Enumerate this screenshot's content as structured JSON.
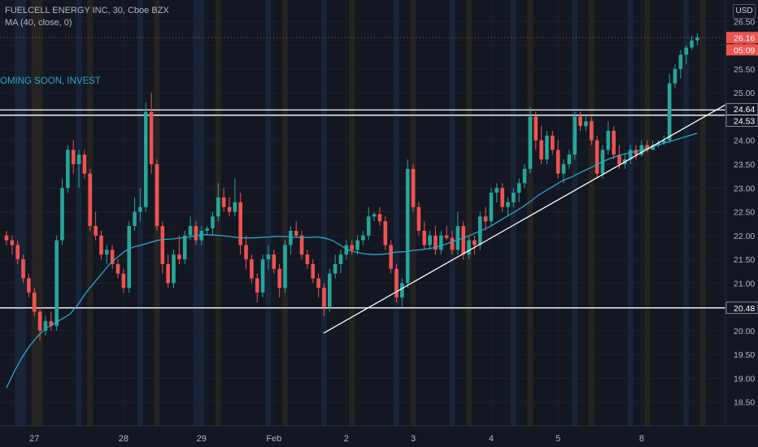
{
  "header": {
    "line1": "FUELCELL ENERGY INC, 30, Cboe BZX",
    "line2": "MA (40, close, 0)"
  },
  "annotation": "OMING SOON, INVEST",
  "currency": "USD",
  "colors": {
    "background": "#131722",
    "up": "#26a69a",
    "down": "#ef5350",
    "ma": "#2aa7c9",
    "line": "#ffffff",
    "session_blue": "#1c2a42",
    "session_orange": "#2e2a22",
    "last_price_tag": "#ef5350"
  },
  "chart_data": {
    "type": "candlestick",
    "symbol": "FUELCELL ENERGY INC",
    "interval": "30",
    "exchange": "Cboe BZX",
    "x_ticks": [
      "27",
      "28",
      "29",
      "Feb",
      "2",
      "3",
      "4",
      "5",
      "8"
    ],
    "y_ticks": [
      26.5,
      26.0,
      25.5,
      25.0,
      24.5,
      24.0,
      23.5,
      23.0,
      22.5,
      22.0,
      21.5,
      21.0,
      20.5,
      20.0,
      19.5,
      19.0,
      18.5
    ],
    "ylim": [
      18.0,
      26.95
    ],
    "y_tick_labels": [
      "26.50",
      "26.00",
      "25.50",
      "25.00",
      "24.50",
      "24.00",
      "23.50",
      "23.00",
      "22.50",
      "22.00",
      "21.50",
      "21.00",
      "20.50",
      "20.00",
      "19.50",
      "19.00",
      "18.50"
    ],
    "price_labels": [
      {
        "value": 26.16,
        "text": "26.16",
        "style": "last"
      },
      {
        "value": 26.0,
        "text": "05:09",
        "style": "countdown"
      },
      {
        "value": 24.64,
        "text": "24.64",
        "style": "level"
      },
      {
        "value": 24.53,
        "text": "24.53",
        "style": "level"
      },
      {
        "value": 20.48,
        "text": "20.48",
        "style": "level"
      }
    ],
    "horizontal_levels": [
      24.64,
      24.53,
      20.48
    ],
    "last_price": 26.16,
    "ohlc": [
      [
        22.0,
        22.1,
        21.8,
        21.9
      ],
      [
        21.9,
        22.0,
        21.6,
        21.8
      ],
      [
        21.8,
        21.9,
        21.4,
        21.5
      ],
      [
        21.5,
        21.6,
        21.0,
        21.1
      ],
      [
        21.1,
        21.2,
        20.7,
        20.8
      ],
      [
        20.8,
        20.9,
        20.3,
        20.4
      ],
      [
        20.4,
        20.5,
        19.8,
        20.0
      ],
      [
        20.0,
        20.3,
        19.9,
        20.2
      ],
      [
        20.2,
        20.4,
        20.0,
        20.1
      ],
      [
        20.1,
        22.0,
        20.0,
        21.9
      ],
      [
        21.9,
        23.2,
        21.8,
        23.0
      ],
      [
        23.0,
        23.9,
        22.9,
        23.8
      ],
      [
        23.8,
        24.0,
        23.3,
        23.5
      ],
      [
        23.5,
        23.8,
        23.0,
        23.7
      ],
      [
        23.7,
        23.8,
        23.2,
        23.3
      ],
      [
        23.3,
        23.4,
        22.1,
        22.2
      ],
      [
        22.2,
        22.5,
        21.9,
        22.0
      ],
      [
        22.0,
        22.1,
        21.5,
        21.6
      ],
      [
        21.6,
        21.8,
        21.4,
        21.7
      ],
      [
        21.7,
        21.8,
        21.3,
        21.4
      ],
      [
        21.4,
        21.5,
        21.1,
        21.2
      ],
      [
        21.2,
        21.3,
        20.8,
        20.9
      ],
      [
        20.9,
        22.3,
        20.8,
        22.2
      ],
      [
        22.2,
        22.8,
        22.1,
        22.5
      ],
      [
        22.5,
        23.0,
        22.3,
        22.6
      ],
      [
        22.6,
        24.8,
        22.5,
        24.6
      ],
      [
        24.6,
        25.0,
        23.3,
        23.5
      ],
      [
        23.5,
        23.6,
        22.1,
        22.2
      ],
      [
        22.2,
        22.3,
        21.2,
        21.4
      ],
      [
        21.4,
        21.6,
        20.9,
        21.0
      ],
      [
        21.0,
        21.7,
        20.9,
        21.6
      ],
      [
        21.6,
        22.0,
        21.4,
        21.5
      ],
      [
        21.5,
        22.1,
        21.4,
        22.0
      ],
      [
        22.0,
        22.4,
        21.9,
        22.2
      ],
      [
        22.2,
        22.3,
        21.8,
        21.9
      ],
      [
        21.9,
        22.2,
        21.8,
        22.1
      ],
      [
        22.1,
        22.2,
        22.0,
        22.15
      ],
      [
        22.15,
        22.5,
        22.0,
        22.4
      ],
      [
        22.4,
        23.1,
        22.3,
        22.8
      ],
      [
        22.8,
        23.0,
        22.5,
        22.6
      ],
      [
        22.6,
        22.8,
        22.4,
        22.5
      ],
      [
        22.5,
        23.2,
        22.4,
        22.7
      ],
      [
        22.7,
        22.9,
        21.6,
        21.8
      ],
      [
        21.8,
        22.0,
        21.3,
        21.5
      ],
      [
        21.5,
        21.6,
        21.0,
        21.1
      ],
      [
        21.1,
        21.2,
        20.6,
        20.8
      ],
      [
        20.8,
        21.6,
        20.7,
        21.5
      ],
      [
        21.5,
        21.8,
        21.3,
        21.6
      ],
      [
        21.6,
        21.7,
        21.2,
        21.3
      ],
      [
        21.3,
        21.4,
        20.7,
        20.9
      ],
      [
        20.9,
        21.9,
        20.8,
        21.8
      ],
      [
        21.8,
        22.2,
        21.6,
        22.1
      ],
      [
        22.1,
        22.3,
        21.95,
        22.0
      ],
      [
        22.0,
        22.1,
        21.5,
        21.6
      ],
      [
        21.6,
        21.7,
        21.3,
        21.4
      ],
      [
        21.4,
        21.5,
        21.0,
        21.1
      ],
      [
        21.1,
        21.2,
        20.7,
        20.9
      ],
      [
        20.9,
        21.0,
        20.3,
        20.5
      ],
      [
        20.5,
        21.3,
        20.4,
        21.2
      ],
      [
        21.2,
        21.6,
        21.1,
        21.4
      ],
      [
        21.4,
        21.7,
        21.2,
        21.6
      ],
      [
        21.6,
        21.9,
        21.5,
        21.8
      ],
      [
        21.8,
        21.9,
        21.6,
        21.7
      ],
      [
        21.7,
        22.0,
        21.6,
        21.9
      ],
      [
        21.9,
        22.1,
        21.8,
        22.0
      ],
      [
        22.0,
        22.6,
        21.9,
        22.4
      ],
      [
        22.4,
        22.5,
        22.3,
        22.45
      ],
      [
        22.45,
        22.6,
        22.2,
        22.3
      ],
      [
        22.3,
        22.4,
        21.7,
        21.8
      ],
      [
        21.8,
        21.9,
        21.2,
        21.3
      ],
      [
        21.3,
        21.4,
        20.6,
        20.7
      ],
      [
        20.7,
        21.1,
        20.5,
        21.0
      ],
      [
        21.0,
        23.6,
        20.9,
        23.4
      ],
      [
        23.4,
        23.5,
        22.5,
        22.6
      ],
      [
        22.6,
        22.7,
        22.0,
        22.1
      ],
      [
        22.1,
        22.3,
        21.7,
        21.8
      ],
      [
        21.8,
        22.1,
        21.7,
        22.0
      ],
      [
        22.0,
        22.2,
        21.6,
        21.7
      ],
      [
        21.7,
        22.1,
        21.6,
        22.0
      ],
      [
        22.0,
        22.2,
        21.9,
        21.95
      ],
      [
        21.95,
        22.1,
        21.6,
        21.7
      ],
      [
        21.7,
        22.5,
        21.6,
        22.2
      ],
      [
        22.2,
        22.3,
        21.5,
        21.6
      ],
      [
        21.6,
        22.0,
        21.5,
        21.9
      ],
      [
        21.9,
        22.0,
        21.6,
        21.8
      ],
      [
        21.8,
        22.5,
        21.7,
        22.4
      ],
      [
        22.4,
        22.6,
        22.1,
        22.3
      ],
      [
        22.3,
        23.0,
        22.2,
        22.9
      ],
      [
        22.9,
        23.1,
        22.7,
        23.0
      ],
      [
        23.0,
        23.1,
        22.5,
        22.6
      ],
      [
        22.6,
        22.8,
        22.4,
        22.7
      ],
      [
        22.7,
        23.0,
        22.6,
        22.9
      ],
      [
        22.9,
        23.2,
        22.7,
        23.1
      ],
      [
        23.1,
        23.5,
        23.0,
        23.4
      ],
      [
        23.4,
        24.7,
        23.3,
        24.5
      ],
      [
        24.5,
        24.6,
        23.8,
        24.0
      ],
      [
        24.0,
        24.3,
        23.5,
        23.6
      ],
      [
        23.6,
        24.2,
        23.5,
        24.1
      ],
      [
        24.1,
        24.2,
        23.7,
        23.8
      ],
      [
        23.8,
        24.0,
        23.2,
        23.3
      ],
      [
        23.3,
        23.6,
        23.1,
        23.5
      ],
      [
        23.5,
        23.8,
        23.4,
        23.7
      ],
      [
        23.7,
        24.6,
        23.6,
        24.5
      ],
      [
        24.5,
        24.6,
        24.2,
        24.3
      ],
      [
        24.3,
        24.5,
        24.2,
        24.4
      ],
      [
        24.4,
        24.5,
        23.9,
        24.0
      ],
      [
        24.0,
        24.1,
        23.2,
        23.3
      ],
      [
        23.3,
        23.9,
        23.2,
        23.8
      ],
      [
        23.8,
        24.4,
        23.7,
        24.2
      ],
      [
        24.2,
        24.3,
        23.6,
        23.7
      ],
      [
        23.7,
        23.9,
        23.4,
        23.5
      ],
      [
        23.5,
        23.7,
        23.4,
        23.6
      ],
      [
        23.6,
        23.9,
        23.5,
        23.8
      ],
      [
        23.8,
        23.9,
        23.6,
        23.7
      ],
      [
        23.7,
        24.0,
        23.65,
        23.9
      ],
      [
        23.9,
        24.0,
        23.75,
        23.8
      ],
      [
        23.8,
        24.0,
        23.8,
        23.9
      ],
      [
        23.9,
        24.0,
        23.85,
        23.95
      ],
      [
        23.95,
        24.1,
        23.9,
        24.0
      ],
      [
        24.0,
        25.4,
        23.95,
        25.2
      ],
      [
        25.2,
        25.6,
        25.1,
        25.5
      ],
      [
        25.5,
        25.9,
        25.3,
        25.8
      ],
      [
        25.8,
        26.0,
        25.6,
        25.95
      ],
      [
        25.95,
        26.2,
        25.9,
        26.1
      ],
      [
        26.1,
        26.25,
        26.0,
        26.16
      ]
    ],
    "ma": {
      "name": "MA (40, close, 0)",
      "values": [
        18.8,
        19.15,
        19.45,
        19.7,
        19.9,
        20.05,
        20.15,
        20.25,
        20.35,
        20.55,
        20.8,
        21.0,
        21.2,
        21.4,
        21.55,
        21.68,
        21.76,
        21.8,
        21.85,
        21.9,
        21.92,
        21.93,
        21.95,
        21.97,
        22.0,
        22.02,
        22.01,
        22.0,
        21.98,
        21.96,
        21.95,
        21.95,
        21.96,
        21.97,
        21.98,
        21.98,
        21.97,
        21.96,
        21.96,
        21.97,
        21.95,
        21.9,
        21.8,
        21.7,
        21.65,
        21.62,
        21.6,
        21.6,
        21.62,
        21.65,
        21.66,
        21.68,
        21.7,
        21.72,
        21.75,
        21.8,
        21.86,
        21.92,
        21.98,
        22.05,
        22.12,
        22.2,
        22.3,
        22.4,
        22.5,
        22.6,
        22.72,
        22.85,
        22.95,
        23.05,
        23.15,
        23.22,
        23.3,
        23.38,
        23.46,
        23.55,
        23.62,
        23.68,
        23.72,
        23.76,
        23.8,
        23.85,
        23.9,
        23.95,
        24.0,
        24.05,
        24.1,
        24.15
      ]
    },
    "trendlines": [
      {
        "from": [
          0,
          19.95
        ],
        "to": [
          121,
          24.75
        ]
      }
    ],
    "session_bands": [
      {
        "start": 2,
        "end": 4,
        "color": "session_blue"
      },
      {
        "start": 5,
        "end": 7,
        "color": "session_orange"
      },
      {
        "start": 13,
        "end": 14,
        "color": "session_blue"
      },
      {
        "start": 15,
        "end": 16,
        "color": "session_orange"
      },
      {
        "start": 24,
        "end": 25,
        "color": "session_blue"
      },
      {
        "start": 27,
        "end": 28,
        "color": "session_orange"
      },
      {
        "start": 34,
        "end": 36,
        "color": "session_blue"
      },
      {
        "start": 38,
        "end": 39,
        "color": "session_orange"
      },
      {
        "start": 47,
        "end": 48,
        "color": "session_blue"
      },
      {
        "start": 50,
        "end": 51,
        "color": "session_orange"
      },
      {
        "start": 57,
        "end": 58,
        "color": "session_blue"
      },
      {
        "start": 62,
        "end": 63,
        "color": "session_orange"
      },
      {
        "start": 70,
        "end": 71,
        "color": "session_blue"
      },
      {
        "start": 73,
        "end": 74,
        "color": "session_orange"
      },
      {
        "start": 80,
        "end": 81,
        "color": "session_blue"
      },
      {
        "start": 83,
        "end": 84,
        "color": "session_orange"
      },
      {
        "start": 91,
        "end": 92,
        "color": "session_blue"
      },
      {
        "start": 94,
        "end": 95,
        "color": "session_orange"
      },
      {
        "start": 102,
        "end": 103,
        "color": "session_blue"
      },
      {
        "start": 105,
        "end": 106,
        "color": "session_orange"
      },
      {
        "start": 112,
        "end": 113,
        "color": "session_blue"
      },
      {
        "start": 115,
        "end": 116,
        "color": "session_orange"
      },
      {
        "start": 122,
        "end": 123,
        "color": "session_blue"
      },
      {
        "start": 125,
        "end": 126,
        "color": "session_orange"
      }
    ]
  }
}
